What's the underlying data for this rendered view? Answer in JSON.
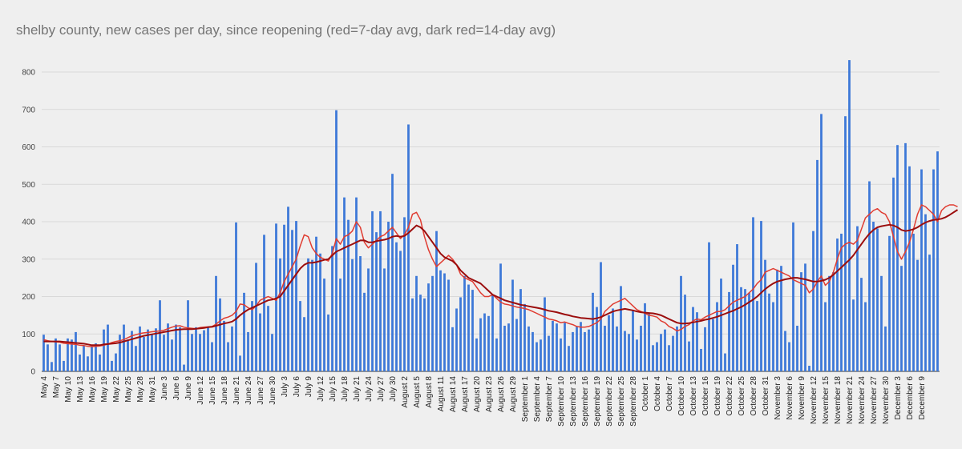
{
  "chart_data": {
    "type": "bar",
    "title": "shelby county, new cases per day, since reopening (red=7-day avg, dark red=14-day avg)",
    "xlabel": "",
    "ylabel": "",
    "ylim": [
      0,
      860
    ],
    "yticks": [
      0,
      100,
      200,
      300,
      400,
      500,
      600,
      700,
      800
    ],
    "grid": true,
    "legend": "none",
    "x_tick_labels": [
      "May 4",
      "May 7",
      "May 10",
      "May 13",
      "May 16",
      "May 19",
      "May 22",
      "May 25",
      "May 28",
      "May 31",
      "June 3",
      "June 6",
      "June 9",
      "June 12",
      "June 15",
      "June 18",
      "June 21",
      "June 24",
      "June 27",
      "June 30",
      "July 3",
      "July 6",
      "July 9",
      "July 12",
      "July 15",
      "July 18",
      "July 21",
      "July 24",
      "July 27",
      "July 30",
      "August 2",
      "August 5",
      "August 8",
      "August 11",
      "August 14",
      "August 17",
      "August 20",
      "August 23",
      "August 26",
      "August 29",
      "September 1",
      "September 4",
      "September 7",
      "September 10",
      "September 13",
      "September 16",
      "September 19",
      "September 22",
      "September 25",
      "September 28",
      "October 1",
      "October 4",
      "October 7",
      "October 10",
      "October 13",
      "October 16",
      "October 19",
      "October 22",
      "October 25",
      "October 28",
      "October 31",
      "November 3",
      "November 6",
      "November 9",
      "November 12",
      "November 15",
      "November 18",
      "November 21",
      "November 24",
      "November 27",
      "November 30",
      "December 3",
      "December 6",
      "December 9"
    ],
    "series": [
      {
        "name": "new cases per day",
        "color": "#3c78d8",
        "values": [
          98,
          72,
          25,
          88,
          72,
          28,
          88,
          85,
          105,
          45,
          68,
          40,
          68,
          75,
          45,
          112,
          125,
          28,
          48,
          98,
          125,
          85,
          108,
          68,
          120,
          92,
          112,
          98,
          115,
          190,
          98,
          128,
          85,
          125,
          118,
          18,
          190,
          100,
          118,
          100,
          110,
          120,
          78,
          255,
          195,
          135,
          78,
          120,
          398,
          42,
          210,
          105,
          188,
          290,
          155,
          365,
          175,
          100,
          395,
          302,
          392,
          440,
          378,
          402,
          188,
          145,
          302,
          298,
          360,
          315,
          248,
          152,
          335,
          698,
          248,
          465,
          405,
          300,
          465,
          308,
          210,
          275,
          428,
          372,
          428,
          275,
          400,
          528,
          345,
          322,
          412,
          660,
          195,
          255,
          205,
          195,
          235,
          255,
          375,
          270,
          262,
          245,
          118,
          168,
          198,
          255,
          232,
          218,
          88,
          142,
          155,
          148,
          205,
          88,
          288,
          122,
          128,
          245,
          140,
          220,
          180,
          120,
          105,
          78,
          85,
          198,
          95,
          135,
          128,
          88,
          130,
          68,
          105,
          120,
          132,
          105,
          112,
          210,
          172,
          292,
          122,
          150,
          168,
          120,
          228,
          108,
          100,
          162,
          85,
          122,
          182,
          155,
          70,
          78,
          100,
          112,
          70,
          95,
          120,
          255,
          205,
          80,
          172,
          158,
          60,
          118,
          345,
          140,
          185,
          248,
          48,
          212,
          285,
          340,
          225,
          220,
          210,
          412,
          188,
          402,
          298,
          208,
          185,
          272,
          282,
          108,
          78,
          398,
          122,
          265,
          288,
          15,
          375,
          565,
          688,
          185,
          255,
          265,
          355,
          368,
          682,
          832,
          192,
          388,
          250,
          185,
          508,
          400,
          382,
          255,
          120,
          362,
          518,
          605,
          282,
          610,
          548,
          368,
          298,
          540,
          420,
          312,
          540,
          588
        ]
      },
      {
        "name": "7-day avg",
        "color": "#e03c31",
        "values": [
          85,
          82,
          80,
          79,
          78,
          75,
          74,
          73,
          72,
          70,
          69,
          67,
          66,
          67,
          68,
          70,
          73,
          77,
          80,
          82,
          85,
          90,
          95,
          98,
          101,
          103,
          104,
          106,
          107,
          108,
          110,
          114,
          118,
          121,
          122,
          118,
          116,
          115,
          114,
          117,
          118,
          119,
          120,
          126,
          135,
          142,
          145,
          150,
          160,
          180,
          178,
          170,
          165,
          175,
          190,
          195,
          200,
          195,
          190,
          210,
          240,
          260,
          280,
          300,
          335,
          365,
          360,
          330,
          315,
          305,
          300,
          295,
          315,
          355,
          340,
          360,
          365,
          375,
          400,
          385,
          345,
          330,
          340,
          350,
          360,
          365,
          375,
          385,
          370,
          355,
          365,
          385,
          420,
          425,
          405,
          360,
          325,
          300,
          280,
          290,
          300,
          310,
          300,
          285,
          260,
          250,
          245,
          240,
          225,
          210,
          200,
          200,
          205,
          195,
          185,
          180,
          178,
          175,
          172,
          170,
          168,
          165,
          160,
          155,
          150,
          145,
          140,
          138,
          135,
          130,
          132,
          128,
          125,
          120,
          118,
          118,
          120,
          125,
          130,
          140,
          160,
          170,
          180,
          185,
          190,
          195,
          185,
          175,
          165,
          160,
          155,
          150,
          148,
          145,
          135,
          130,
          120,
          115,
          108,
          112,
          120,
          125,
          135,
          140,
          138,
          145,
          150,
          155,
          160,
          160,
          165,
          175,
          185,
          190,
          195,
          200,
          210,
          220,
          235,
          245,
          265,
          270,
          275,
          270,
          265,
          260,
          255,
          245,
          240,
          235,
          230,
          210,
          220,
          240,
          255,
          230,
          240,
          265,
          300,
          330,
          340,
          345,
          340,
          350,
          380,
          410,
          420,
          430,
          435,
          425,
          420,
          400,
          360,
          320,
          300,
          320,
          345,
          380,
          420,
          445,
          440,
          430,
          420,
          400,
          430,
          440,
          445,
          445,
          440
        ]
      },
      {
        "name": "14-day avg",
        "color": "#9b0d0d",
        "values": [
          80,
          80,
          80,
          80,
          80,
          79,
          78,
          77,
          76,
          75,
          74,
          72,
          70,
          70,
          70,
          72,
          73,
          74,
          75,
          77,
          80,
          83,
          86,
          89,
          92,
          95,
          97,
          99,
          101,
          103,
          105,
          107,
          109,
          111,
          112,
          113,
          113,
          113,
          114,
          115,
          116,
          118,
          119,
          122,
          125,
          128,
          130,
          133,
          140,
          150,
          158,
          165,
          170,
          175,
          180,
          185,
          190,
          192,
          195,
          200,
          215,
          230,
          245,
          260,
          275,
          285,
          290,
          290,
          292,
          295,
          298,
          300,
          310,
          320,
          325,
          330,
          335,
          340,
          345,
          350,
          350,
          345,
          345,
          348,
          350,
          352,
          355,
          360,
          362,
          360,
          362,
          370,
          380,
          390,
          385,
          375,
          360,
          345,
          330,
          315,
          305,
          300,
          295,
          285,
          270,
          260,
          250,
          245,
          240,
          235,
          225,
          215,
          205,
          200,
          195,
          190,
          187,
          184,
          181,
          178,
          176,
          174,
          172,
          170,
          168,
          165,
          162,
          160,
          158,
          155,
          152,
          150,
          147,
          145,
          143,
          142,
          141,
          140,
          142,
          145,
          150,
          155,
          160,
          163,
          165,
          167,
          165,
          163,
          160,
          158,
          157,
          156,
          155,
          153,
          150,
          145,
          140,
          135,
          130,
          128,
          128,
          129,
          131,
          133,
          135,
          138,
          140,
          143,
          146,
          150,
          154,
          158,
          162,
          167,
          172,
          178,
          185,
          192,
          200,
          210,
          220,
          228,
          235,
          240,
          243,
          246,
          248,
          250,
          250,
          248,
          246,
          243,
          240,
          240,
          242,
          245,
          250,
          258,
          268,
          278,
          288,
          298,
          310,
          325,
          340,
          355,
          368,
          378,
          385,
          388,
          390,
          392,
          390,
          385,
          378,
          375,
          377,
          380,
          385,
          392,
          398,
          402,
          405,
          406,
          408,
          412,
          418,
          425,
          432
        ]
      }
    ]
  }
}
